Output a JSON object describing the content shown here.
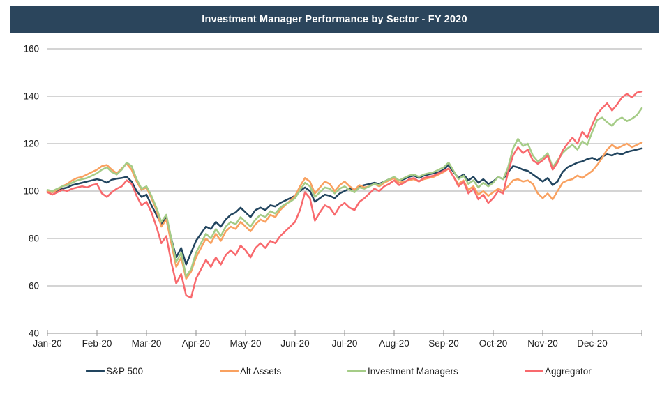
{
  "header": {
    "title": "Investment Manager Performance by Sector - FY 2020",
    "bg_color": "#2b455c",
    "text_color": "#ffffff"
  },
  "colors": {
    "grid": "#a9a9a9",
    "axis": "#8f8f8f",
    "label": "#1f1f1f"
  },
  "chart_data": {
    "type": "line",
    "title": "Investment Manager Performance by Sector - FY 2020",
    "grid": true,
    "legend_position": "bottom",
    "x_axis": {
      "tick_labels": [
        "Jan-20",
        "Feb-20",
        "Mar-20",
        "Apr-20",
        "May-20",
        "Jun-20",
        "Jul-20",
        "Aug-20",
        "Sep-20",
        "Oct-20",
        "Nov-20",
        "Dec-20"
      ],
      "months_shown": 12
    },
    "y_axis": {
      "min": 40,
      "max": 160,
      "ticks": [
        40,
        60,
        80,
        100,
        120,
        140,
        160
      ]
    },
    "x_start": 0,
    "x_step": 0.1,
    "series": [
      {
        "name": "S&P 500",
        "color": "#22455f",
        "values": [
          100,
          99.5,
          100.2,
          101,
          101.5,
          102.5,
          103,
          103.5,
          104,
          104.5,
          105,
          104.5,
          103.5,
          104.8,
          105.2,
          105.5,
          106,
          104,
          100,
          97.5,
          98.5,
          94,
          90,
          86,
          89,
          80,
          72,
          76,
          69,
          74,
          79,
          82,
          85,
          84,
          87,
          85,
          88,
          90,
          91,
          93,
          91,
          89,
          92,
          93,
          92,
          94,
          93.5,
          95,
          96,
          97,
          98,
          100,
          101.5,
          100,
          95.5,
          97,
          98.5,
          98,
          97,
          99,
          100,
          101,
          100.5,
          102,
          102.5,
          103,
          103.5,
          103,
          104,
          105,
          105.5,
          104.5,
          105,
          106,
          106.5,
          105.5,
          106.5,
          107,
          107.5,
          108,
          109,
          111,
          108,
          105.5,
          107,
          104.5,
          106,
          103.5,
          105,
          103,
          104,
          106,
          105,
          108,
          110.5,
          110,
          109,
          108.5,
          107,
          105.5,
          104,
          105.5,
          102.5,
          104,
          108,
          110,
          111,
          112,
          112.5,
          113.5,
          114,
          113,
          114.5,
          115.5,
          115,
          116,
          115.5,
          116.5,
          117,
          117.5,
          118
        ]
      },
      {
        "name": "Alt Assets",
        "color": "#f9a160",
        "values": [
          100,
          99.5,
          100.5,
          102,
          103,
          104.5,
          105.5,
          106,
          107,
          108,
          109,
          110.5,
          111,
          109,
          107.5,
          109.5,
          111.5,
          109,
          104,
          100.5,
          101.5,
          97,
          92,
          85,
          88,
          78,
          68,
          72,
          63,
          66,
          72,
          76,
          80,
          78,
          82,
          79,
          83,
          85,
          84,
          87,
          85,
          83,
          86,
          88,
          87,
          90,
          89,
          92,
          94,
          96,
          98,
          102,
          105.5,
          104,
          99,
          101.5,
          104,
          103,
          100,
          102.5,
          104,
          102,
          100.5,
          102.5,
          101.5,
          102,
          103,
          102,
          103.5,
          104.5,
          105.5,
          103.5,
          104,
          104.5,
          105,
          104,
          105,
          105.5,
          106,
          107,
          108,
          109.5,
          106,
          103,
          104.5,
          100.5,
          102,
          98.5,
          100,
          98,
          99.5,
          101,
          100,
          102,
          104.5,
          105,
          104,
          104.5,
          103,
          99,
          97,
          99,
          96.5,
          100,
          103.5,
          104.5,
          105,
          106.5,
          105.5,
          107,
          108.5,
          111,
          114,
          117.5,
          119.5,
          118,
          119,
          120,
          118.5,
          119.5,
          120.5
        ]
      },
      {
        "name": "Investment Managers",
        "color": "#a5cc87",
        "values": [
          100.5,
          100,
          101,
          102,
          102.5,
          103.5,
          104.5,
          105,
          105.5,
          106.5,
          107.5,
          109,
          110,
          108,
          107,
          109,
          112,
          110.5,
          105,
          101,
          102,
          98,
          93,
          87,
          90,
          80,
          70,
          74,
          64,
          67,
          74,
          78,
          82,
          80,
          84,
          81,
          85,
          87,
          86,
          89,
          87,
          85,
          88,
          90,
          89,
          91.5,
          90.5,
          93,
          94.5,
          95.5,
          97,
          100.5,
          103.5,
          102,
          97.5,
          99.5,
          101.5,
          101,
          99,
          101,
          102,
          100.5,
          99.5,
          101.5,
          101,
          102,
          103,
          102.5,
          104,
          105,
          106,
          104.5,
          105.5,
          106.5,
          107,
          106,
          107,
          107.5,
          108,
          109,
          110,
          112,
          108.5,
          105,
          106.5,
          103,
          104.5,
          101.5,
          103.5,
          102,
          103.5,
          106,
          105,
          110,
          118,
          122,
          119,
          120,
          115,
          112.5,
          114,
          116,
          110,
          113,
          116,
          118,
          119.5,
          117.5,
          121,
          119.5,
          125,
          130,
          131,
          129,
          127.5,
          130,
          131,
          129.5,
          130.5,
          132,
          135
        ]
      },
      {
        "name": "Aggregator",
        "color": "#f8696d",
        "values": [
          99.5,
          98.5,
          99.5,
          100.5,
          100,
          101,
          101.5,
          102,
          101.5,
          102.5,
          103,
          99,
          97.5,
          99.5,
          101,
          102,
          104.5,
          103,
          98,
          94,
          95.5,
          91,
          85,
          78,
          81,
          70,
          61,
          65,
          56,
          55,
          63,
          67,
          71,
          68,
          72,
          69,
          73,
          75,
          73,
          77,
          75,
          72,
          76,
          78,
          76,
          79,
          78,
          81,
          83,
          85,
          87,
          92,
          99.5,
          97,
          87.5,
          91,
          94,
          93,
          90,
          93.5,
          95,
          93,
          92,
          95.5,
          97,
          99,
          101,
          100,
          102,
          103,
          104.5,
          102.5,
          103.5,
          105,
          105.5,
          104,
          105.5,
          106,
          106.5,
          107.5,
          108.5,
          109.5,
          106,
          102,
          104,
          99,
          101,
          96.5,
          98.5,
          95,
          97,
          100,
          99,
          108,
          115,
          118.5,
          116,
          117.5,
          113,
          111.5,
          113,
          115,
          109,
          112,
          117,
          120,
          122.5,
          120,
          125,
          122.5,
          128,
          132.5,
          135,
          137,
          134,
          136.5,
          139.5,
          141,
          139.5,
          141.5,
          142
        ]
      }
    ]
  }
}
